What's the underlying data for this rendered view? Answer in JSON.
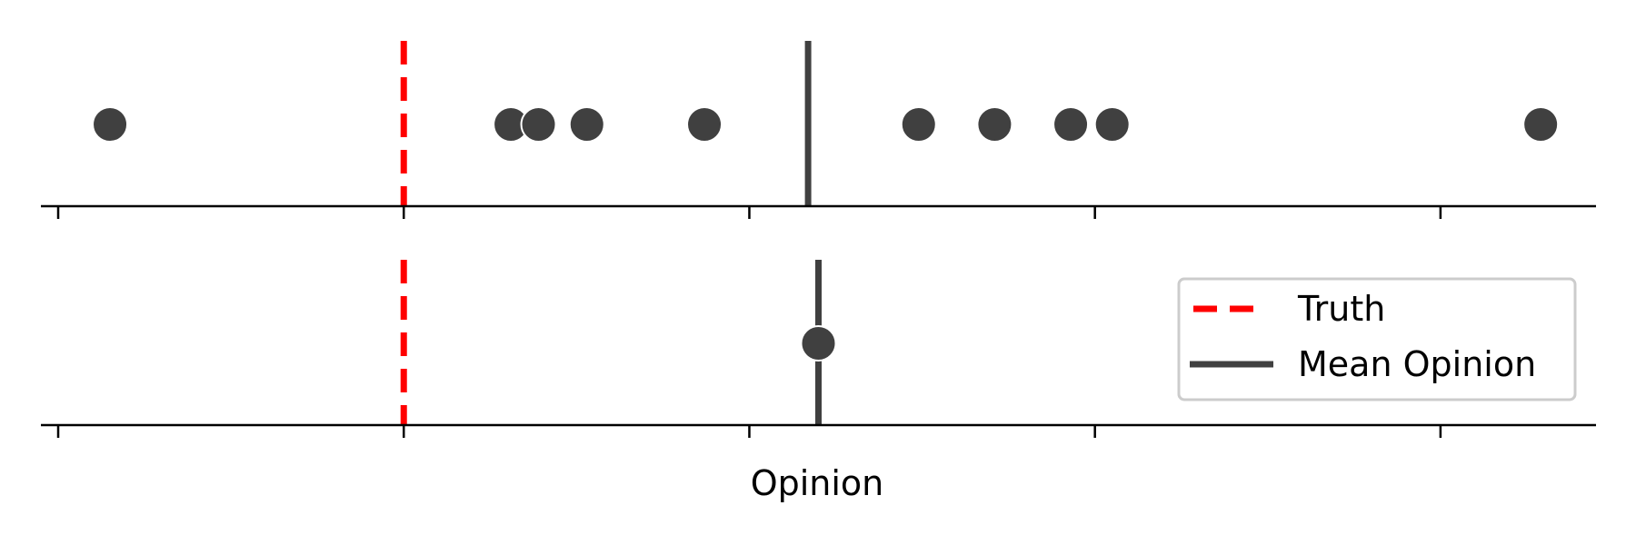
{
  "chart_data": {
    "type": "scatter",
    "xlabel": "Opinion",
    "xlim": [
      -1.05,
      3.45
    ],
    "tick_values": [
      -1,
      0,
      1,
      2,
      3
    ],
    "truth": 0,
    "colors": {
      "points": "#404040",
      "truth": "#ff0000",
      "mean": "#404040",
      "axis": "#000000",
      "legend_border": "#cccccc"
    },
    "panels": [
      {
        "name": "individual",
        "opinions": [
          -0.85,
          0.31,
          0.39,
          0.53,
          0.87,
          1.49,
          1.71,
          1.93,
          2.05,
          3.29
        ],
        "mean_opinion": 1.17
      },
      {
        "name": "aggregate",
        "opinions": [
          1.2
        ],
        "mean_opinion": 1.2
      }
    ],
    "legend": {
      "position": "center-right",
      "entries": [
        {
          "label": "Truth",
          "style": "dashed",
          "color": "#ff0000"
        },
        {
          "label": "Mean Opinion",
          "style": "solid",
          "color": "#404040"
        }
      ]
    }
  }
}
